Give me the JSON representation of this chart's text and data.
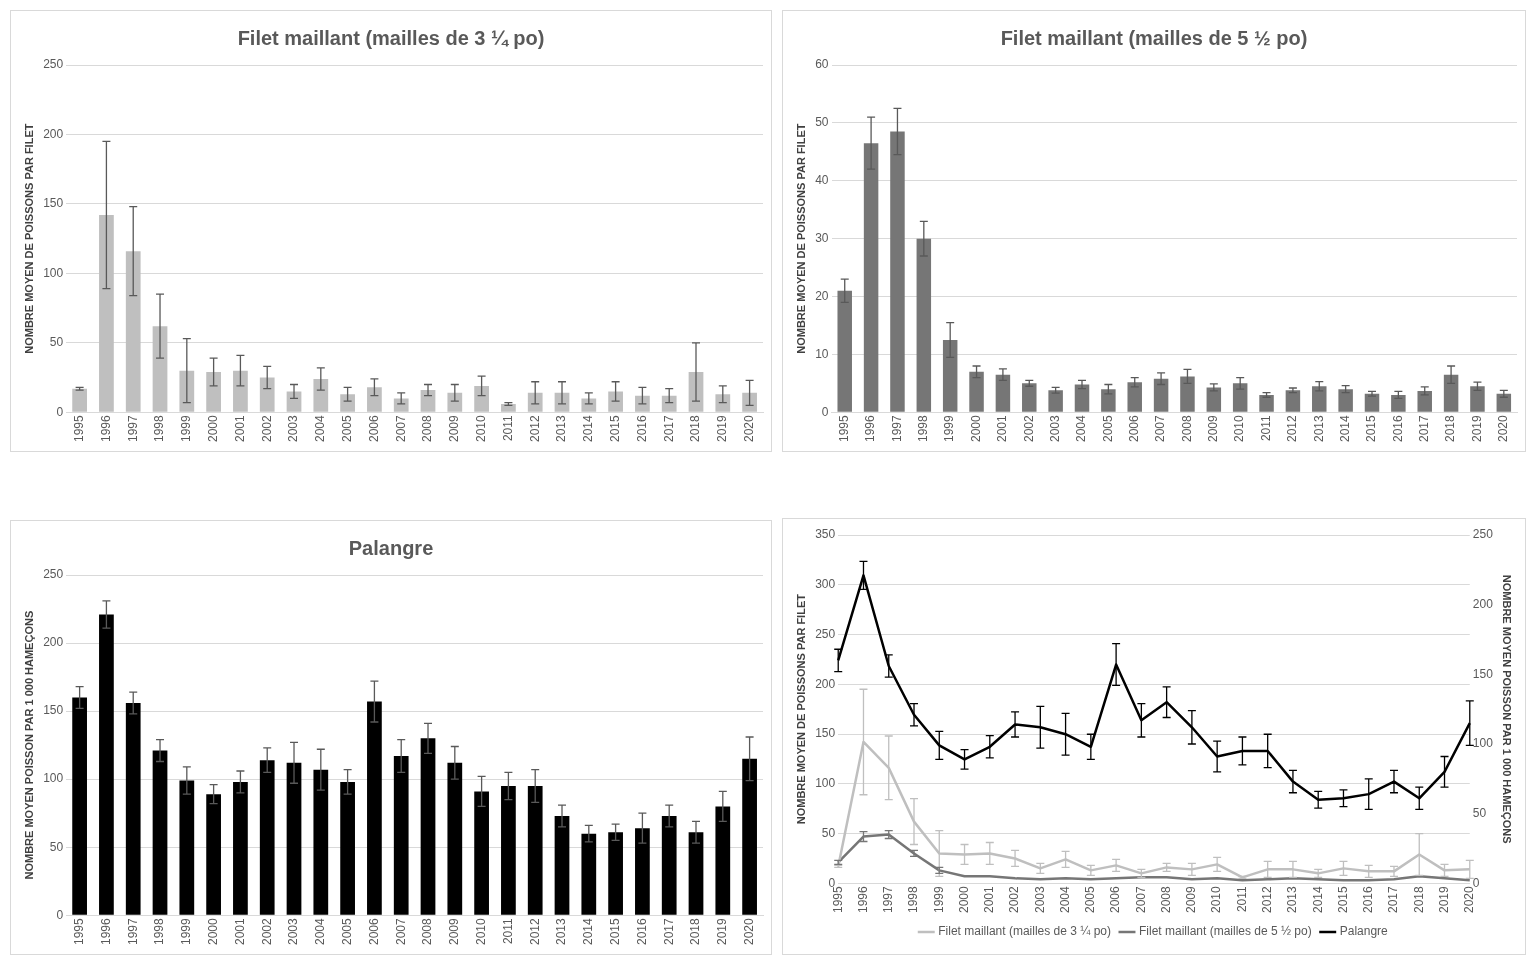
{
  "chart_data": [
    {
      "type": "bar",
      "title": "Filet maillant (mailles de 3 ¼ po)",
      "ylabel": "NOMBRE MOYEN DE POISSONS PAR FILET",
      "categories": [
        "1995",
        "1996",
        "1997",
        "1998",
        "1999",
        "2000",
        "2001",
        "2002",
        "2003",
        "2004",
        "2005",
        "2006",
        "2007",
        "2008",
        "2009",
        "2010",
        "2011",
        "2012",
        "2013",
        "2014",
        "2015",
        "2016",
        "2017",
        "2018",
        "2019",
        "2020"
      ],
      "ylim": [
        0,
        250
      ],
      "yticks": [
        0,
        50,
        100,
        150,
        200,
        250
      ],
      "grid": "y",
      "legend": false,
      "series": [
        {
          "color": "#bfbfbf",
          "values": [
            17,
            142,
            116,
            62,
            30,
            29,
            30,
            25,
            15,
            24,
            13,
            18,
            10,
            16,
            14,
            19,
            6,
            14,
            14,
            10,
            15,
            12,
            12,
            29,
            13,
            14
          ],
          "errors": [
            1,
            53,
            32,
            23,
            23,
            10,
            11,
            8,
            5,
            8,
            5,
            6,
            4,
            4,
            6,
            7,
            1,
            8,
            8,
            4,
            7,
            6,
            5,
            21,
            6,
            9
          ]
        }
      ]
    },
    {
      "type": "bar",
      "title": "Filet maillant (mailles de 5 ½ po)",
      "ylabel": "NOMBRE MOYEN DE POISSONS PAR FILET",
      "categories": [
        "1995",
        "1996",
        "1997",
        "1998",
        "1999",
        "2000",
        "2001",
        "2002",
        "2003",
        "2004",
        "2005",
        "2006",
        "2007",
        "2008",
        "2009",
        "2010",
        "2011",
        "2012",
        "2013",
        "2014",
        "2015",
        "2016",
        "2017",
        "2018",
        "2019",
        "2020"
      ],
      "ylim": [
        0,
        60
      ],
      "yticks": [
        0,
        10,
        20,
        30,
        40,
        50,
        60
      ],
      "grid": "y",
      "legend": false,
      "series": [
        {
          "color": "#767676",
          "values": [
            21,
            46.5,
            48.5,
            30,
            12.5,
            7,
            6.5,
            5,
            3.8,
            4.8,
            4,
            5.2,
            5.8,
            6.2,
            4.3,
            5,
            3,
            3.8,
            4.5,
            4,
            3.2,
            3,
            3.7,
            6.5,
            4.5,
            3.2
          ],
          "errors": [
            2,
            4.5,
            4,
            3,
            3,
            1,
            1,
            0.5,
            0.5,
            0.7,
            0.8,
            0.8,
            1,
            1.2,
            0.6,
            1,
            0.4,
            0.4,
            0.8,
            0.6,
            0.4,
            0.6,
            0.7,
            1.5,
            0.7,
            0.6
          ]
        }
      ]
    },
    {
      "type": "bar",
      "title": "Palangre",
      "ylabel": "NOMBRE MOYEN POISSON PAR 1 000 HAMEÇONS",
      "categories": [
        "1995",
        "1996",
        "1997",
        "1998",
        "1999",
        "2000",
        "2001",
        "2002",
        "2003",
        "2004",
        "2005",
        "2006",
        "2007",
        "2008",
        "2009",
        "2010",
        "2011",
        "2012",
        "2013",
        "2014",
        "2015",
        "2016",
        "2017",
        "2018",
        "2019",
        "2020"
      ],
      "ylim": [
        0,
        250
      ],
      "yticks": [
        0,
        50,
        100,
        150,
        200,
        250
      ],
      "grid": "y",
      "legend": false,
      "series": [
        {
          "color": "#000000",
          "values": [
            160,
            221,
            156,
            121,
            99,
            89,
            98,
            114,
            112,
            107,
            98,
            157,
            117,
            130,
            112,
            91,
            95,
            95,
            73,
            60,
            61,
            64,
            73,
            61,
            80,
            115
          ],
          "errors": [
            8,
            10,
            8,
            8,
            10,
            7,
            8,
            9,
            15,
            15,
            9,
            15,
            12,
            11,
            12,
            11,
            10,
            12,
            8,
            6,
            6,
            11,
            8,
            8,
            11,
            16
          ]
        }
      ]
    },
    {
      "type": "line",
      "ylabel": "NOMBRE MOYEN DE POISSONS PAR FILET",
      "y2label": "NOMBRE MOYEN POISSON PAR 1 000 HAMEÇONS",
      "categories": [
        "1995",
        "1996",
        "1997",
        "1998",
        "1999",
        "2000",
        "2001",
        "2002",
        "2003",
        "2004",
        "2005",
        "2006",
        "2007",
        "2008",
        "2009",
        "2010",
        "2011",
        "2012",
        "2013",
        "2014",
        "2015",
        "2016",
        "2017",
        "2018",
        "2019",
        "2020"
      ],
      "ylim": [
        0,
        350
      ],
      "yticks": [
        0,
        50,
        100,
        150,
        200,
        250,
        300,
        350
      ],
      "y2lim": [
        0,
        250
      ],
      "y2ticks": [
        0,
        50,
        100,
        150,
        200,
        250
      ],
      "grid": "y",
      "legend": "bottom",
      "marker": "none",
      "line_style": "solid",
      "series": [
        {
          "name": "Filet maillant (mailles de 3 ¼ po)",
          "color": "#bfbfbf",
          "values": [
            17,
            142,
            116,
            62,
            30,
            29,
            30,
            25,
            15,
            24,
            13,
            18,
            10,
            16,
            14,
            19,
            6,
            14,
            14,
            10,
            15,
            12,
            12,
            29,
            13,
            14
          ],
          "errors": [
            1,
            53,
            32,
            23,
            23,
            10,
            11,
            8,
            5,
            8,
            5,
            6,
            4,
            4,
            6,
            7,
            1,
            8,
            8,
            4,
            7,
            6,
            5,
            21,
            6,
            9
          ]
        },
        {
          "name": "Filet maillant (mailles de 5 ½ po)",
          "color": "#767676",
          "values": [
            21,
            47,
            49,
            30,
            13,
            7,
            7,
            5,
            4,
            5,
            4,
            5,
            6,
            6,
            4,
            5,
            3,
            4,
            5,
            4,
            3,
            3,
            4,
            7,
            5,
            3
          ],
          "errors": [
            2,
            5,
            4,
            3,
            3,
            null,
            null,
            null,
            null,
            null,
            null,
            null,
            null,
            null,
            null,
            null,
            null,
            null,
            null,
            null,
            null,
            null,
            null,
            null,
            null,
            null
          ]
        },
        {
          "name": "Palangre",
          "color": "#000000",
          "axis": "y2",
          "values": [
            160,
            221,
            156,
            121,
            99,
            89,
            98,
            114,
            112,
            107,
            98,
            157,
            117,
            130,
            112,
            91,
            95,
            95,
            73,
            60,
            61,
            64,
            73,
            61,
            80,
            115
          ],
          "errors": [
            8,
            10,
            8,
            8,
            10,
            7,
            8,
            9,
            15,
            15,
            9,
            15,
            12,
            11,
            12,
            11,
            10,
            12,
            8,
            6,
            6,
            11,
            8,
            8,
            11,
            16
          ]
        }
      ]
    }
  ]
}
